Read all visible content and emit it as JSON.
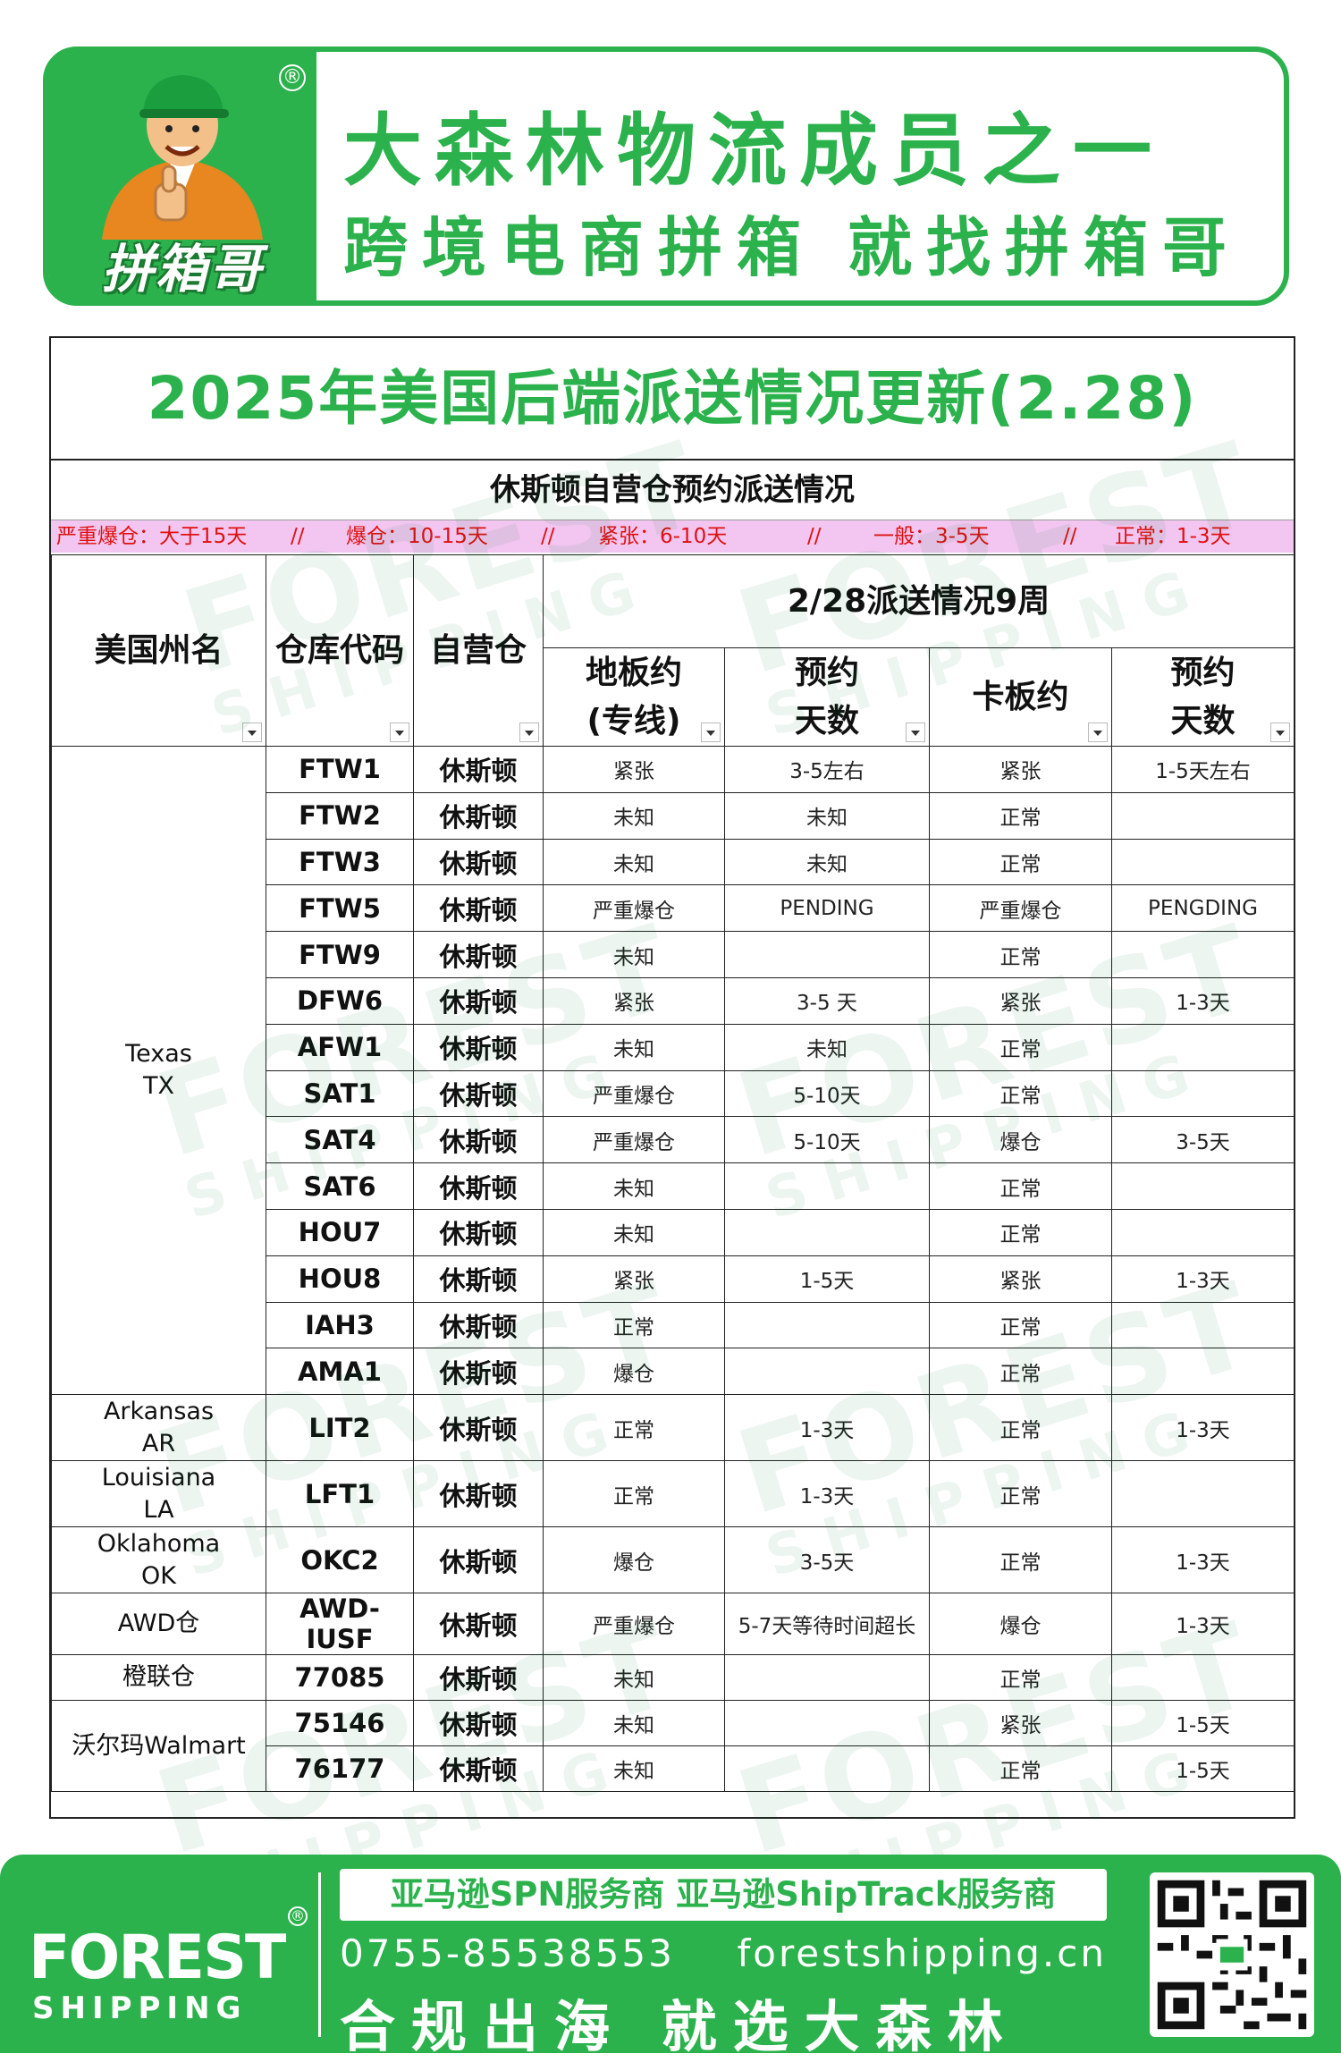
{
  "banner": {
    "logo_text": "拼箱哥",
    "reg_mark": "®",
    "line1": "大森林物流成员之一",
    "line2a": "跨境电商拼箱",
    "line2b": "就找拼箱哥"
  },
  "page_title": "2025年美国后端派送情况更新(2.28)",
  "subtitle": "休斯顿自营仓预约派送情况",
  "legend": [
    "严重爆仓：大于15天",
    "//",
    "爆仓：10-15天",
    "//",
    "紧张：6-10天",
    "//",
    "一般：3-5天",
    "//",
    "正常：1-3天"
  ],
  "table": {
    "headers": {
      "state": "美国州名",
      "code": "仓库代码",
      "warehouse": "自营仓",
      "group": "2/28派送情况9周",
      "floor_l1": "地板约",
      "floor_l2": "(专线)",
      "floor_days_l1": "预约",
      "floor_days_l2": "天数",
      "pallet": "卡板约",
      "pallet_days_l1": "预约",
      "pallet_days_l2": "天数"
    },
    "groups": [
      {
        "state_l1": "Texas",
        "state_l2": "TX",
        "rows": [
          {
            "code": "FTW1",
            "wh": "休斯顿",
            "floor": "紧张",
            "floor_days": "3-5左右",
            "pallet": "紧张",
            "pallet_days": "1-5天左右"
          },
          {
            "code": "FTW2",
            "wh": "休斯顿",
            "floor": "未知",
            "floor_days": "未知",
            "pallet": "正常",
            "pallet_days": ""
          },
          {
            "code": "FTW3",
            "wh": "休斯顿",
            "floor": "未知",
            "floor_days": "未知",
            "pallet": "正常",
            "pallet_days": ""
          },
          {
            "code": "FTW5",
            "wh": "休斯顿",
            "floor": "严重爆仓",
            "floor_days": "PENDING",
            "pallet": "严重爆仓",
            "pallet_days": "PENGDING"
          },
          {
            "code": "FTW9",
            "wh": "休斯顿",
            "floor": "未知",
            "floor_days": "",
            "pallet": "正常",
            "pallet_days": ""
          },
          {
            "code": "DFW6",
            "wh": "休斯顿",
            "floor": "紧张",
            "floor_days": "3-5 天",
            "pallet": "紧张",
            "pallet_days": "1-3天"
          },
          {
            "code": "AFW1",
            "wh": "休斯顿",
            "floor": "未知",
            "floor_days": "未知",
            "pallet": "正常",
            "pallet_days": ""
          },
          {
            "code": "SAT1",
            "wh": "休斯顿",
            "floor": "严重爆仓",
            "floor_days": "5-10天",
            "pallet": "正常",
            "pallet_days": ""
          },
          {
            "code": "SAT4",
            "wh": "休斯顿",
            "floor": "严重爆仓",
            "floor_days": "5-10天",
            "pallet": "爆仓",
            "pallet_days": "3-5天"
          },
          {
            "code": "SAT6",
            "wh": "休斯顿",
            "floor": "未知",
            "floor_days": "",
            "pallet": "正常",
            "pallet_days": ""
          },
          {
            "code": "HOU7",
            "wh": "休斯顿",
            "floor": "未知",
            "floor_days": "",
            "pallet": "正常",
            "pallet_days": ""
          },
          {
            "code": "HOU8",
            "wh": "休斯顿",
            "floor": "紧张",
            "floor_days": "1-5天",
            "pallet": "紧张",
            "pallet_days": "1-3天"
          },
          {
            "code": "IAH3",
            "wh": "休斯顿",
            "floor": "正常",
            "floor_days": "",
            "pallet": "正常",
            "pallet_days": ""
          },
          {
            "code": "AMA1",
            "wh": "休斯顿",
            "floor": "爆仓",
            "floor_days": "",
            "pallet": "正常",
            "pallet_days": ""
          }
        ]
      },
      {
        "state_l1": "Arkansas",
        "state_l2": "AR",
        "rows": [
          {
            "code": "LIT2",
            "wh": "休斯顿",
            "floor": "正常",
            "floor_days": "1-3天",
            "pallet": "正常",
            "pallet_days": "1-3天"
          }
        ]
      },
      {
        "state_l1": "Louisiana",
        "state_l2": "LA",
        "rows": [
          {
            "code": "LFT1",
            "wh": "休斯顿",
            "floor": "正常",
            "floor_days": "1-3天",
            "pallet": "正常",
            "pallet_days": ""
          }
        ]
      },
      {
        "state_l1": "Oklahoma",
        "state_l2": "OK",
        "rows": [
          {
            "code": "OKC2",
            "wh": "休斯顿",
            "floor": "爆仓",
            "floor_days": "3-5天",
            "pallet": "正常",
            "pallet_days": "1-3天"
          }
        ]
      },
      {
        "state_l1": "AWD仓",
        "state_l2": "",
        "rows": [
          {
            "code": "AWD-IUSF",
            "wh": "休斯顿",
            "floor": "严重爆仓",
            "floor_days": "5-7天等待时间超长",
            "pallet": "爆仓",
            "pallet_days": "1-3天"
          }
        ]
      },
      {
        "state_l1": "橙联仓",
        "state_l2": "",
        "rows": [
          {
            "code": "77085",
            "wh": "休斯顿",
            "floor": "未知",
            "floor_days": "",
            "pallet": "正常",
            "pallet_days": ""
          }
        ]
      },
      {
        "state_l1": "沃尔玛Walmart",
        "state_l2": "",
        "rows": [
          {
            "code": "75146",
            "wh": "休斯顿",
            "floor": "未知",
            "floor_days": "",
            "pallet": "紧张",
            "pallet_days": "1-5天"
          },
          {
            "code": "76177",
            "wh": "休斯顿",
            "floor": "未知",
            "floor_days": "",
            "pallet": "正常",
            "pallet_days": "1-5天"
          }
        ]
      }
    ]
  },
  "watermark": {
    "line1": "FOREST",
    "line2": "SHIPPING"
  },
  "footer": {
    "brand1": "FOREST",
    "brand2": "SHIPPING",
    "reg_mark": "®",
    "bar_text": "亚马逊SPN服务商  亚马逊ShipTrack服务商",
    "phone": "0755-85538553",
    "website": "forestshipping.cn",
    "slogan": "合规出海  就选大森林"
  },
  "colors": {
    "brand_green": "#2bb24c",
    "legend_bg": "#f2c6f0",
    "legend_text": "#e01010"
  }
}
